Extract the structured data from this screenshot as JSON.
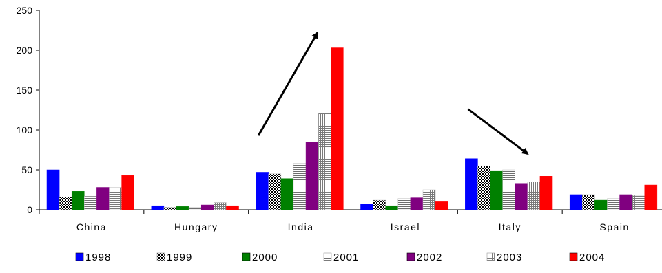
{
  "chart_data": {
    "type": "bar",
    "title": "",
    "xlabel": "",
    "ylabel": "",
    "ylim": [
      0,
      250
    ],
    "yticks": [
      "0",
      "50",
      "100",
      "150",
      "200",
      "250"
    ],
    "categories": [
      "China",
      "Hungary",
      "India",
      "Israel",
      "Italy",
      "Spain"
    ],
    "grid": false,
    "legend_position": "bottom",
    "series": [
      {
        "name": "1998",
        "color": "#0000ff",
        "pattern": "solid",
        "values": [
          50,
          5,
          47,
          7,
          64,
          19
        ]
      },
      {
        "name": "1999",
        "color": "#000000",
        "pattern": "checker",
        "values": [
          16,
          3,
          45,
          12,
          55,
          19
        ]
      },
      {
        "name": "2000",
        "color": "#008000",
        "pattern": "solid",
        "values": [
          23,
          4,
          39,
          5,
          49,
          12
        ]
      },
      {
        "name": "2001",
        "color": "#808080",
        "pattern": "hlines",
        "values": [
          17,
          3,
          58,
          14,
          50,
          14
        ]
      },
      {
        "name": "2002",
        "color": "#800080",
        "pattern": "solid",
        "values": [
          28,
          6,
          85,
          15,
          33,
          19
        ]
      },
      {
        "name": "2003",
        "color": "#808080",
        "pattern": "grid",
        "values": [
          28,
          9,
          121,
          25,
          35,
          18
        ]
      },
      {
        "name": "2004",
        "color": "#ff0000",
        "pattern": "solid",
        "values": [
          43,
          5,
          203,
          10,
          42,
          31
        ]
      }
    ],
    "annotations": [
      {
        "type": "arrow",
        "direction": "up",
        "from": {
          "category": "India",
          "y": 93
        },
        "to": {
          "category": "India",
          "y": 222
        }
      },
      {
        "type": "arrow",
        "direction": "down",
        "from": {
          "category": "Italy",
          "y": 126
        },
        "to": {
          "category": "Italy",
          "y": 70
        }
      }
    ]
  }
}
